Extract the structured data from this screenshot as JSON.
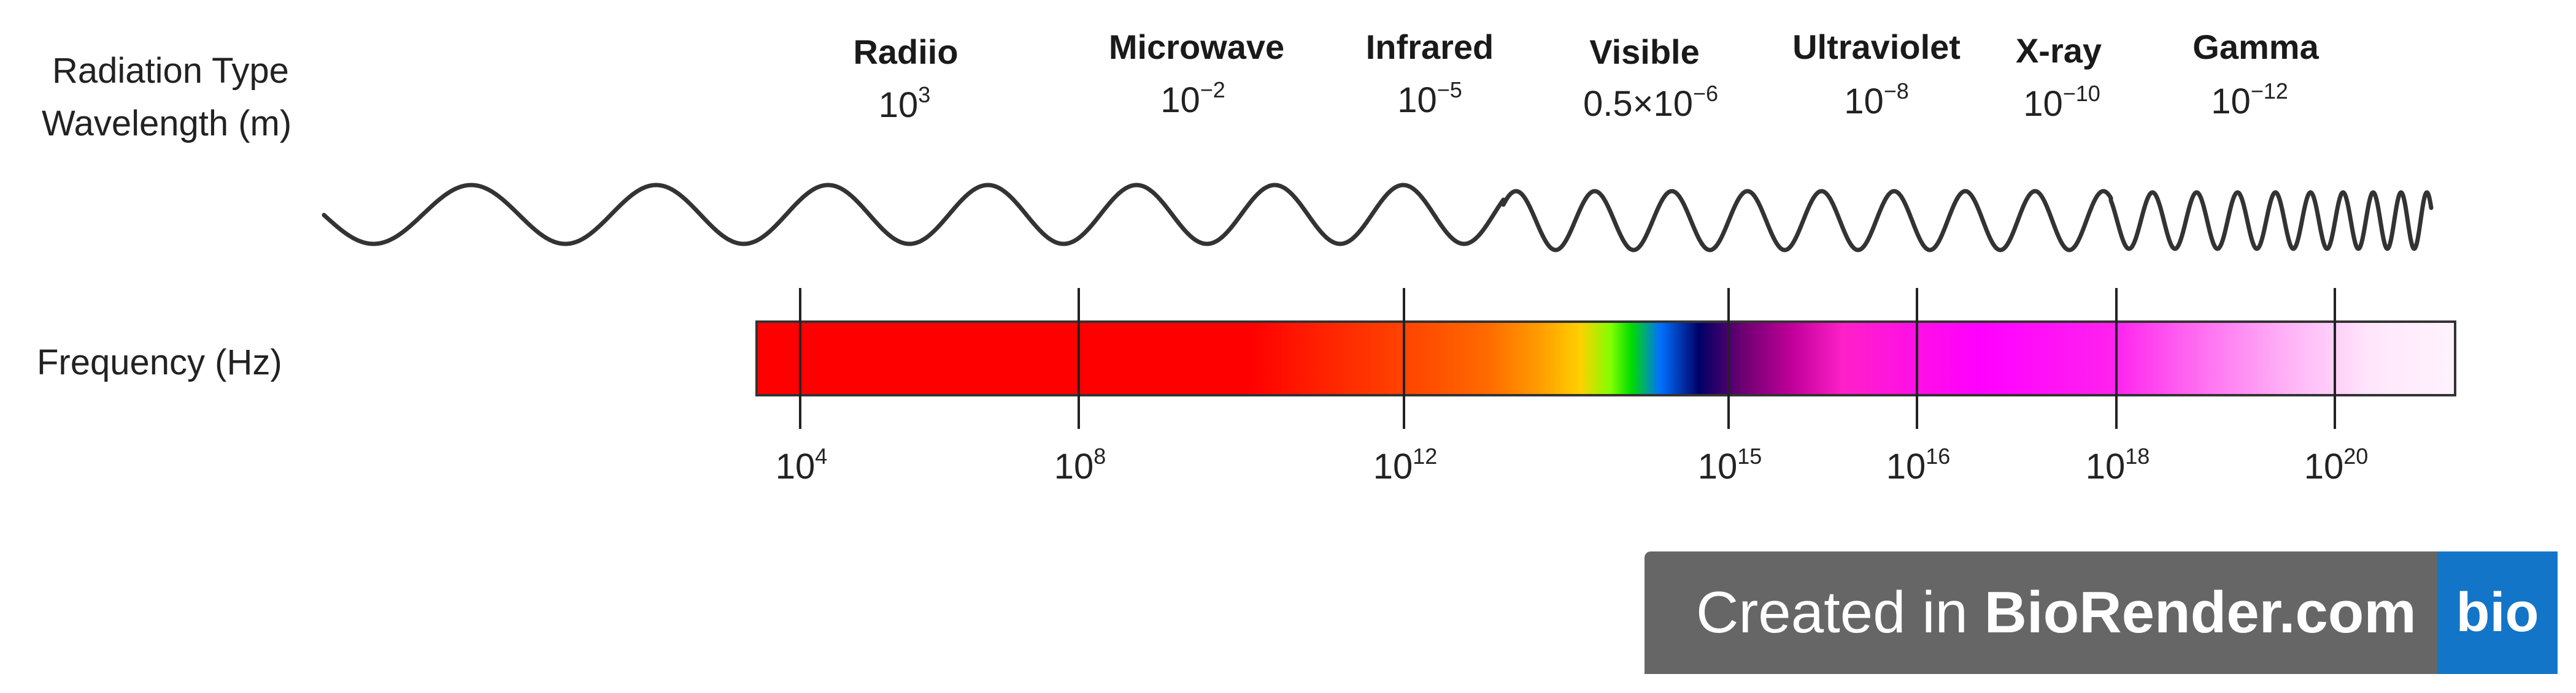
{
  "row_labels": {
    "radiation_type": "Radiation Type",
    "wavelength": "Wavelength (m)",
    "frequency": "Frequency (Hz)"
  },
  "radiation": [
    {
      "name": "Radiio",
      "wl_base": "10",
      "wl_exp": "3"
    },
    {
      "name": "Microwave",
      "wl_base": "10",
      "wl_exp": "−2"
    },
    {
      "name": "Infrared",
      "wl_base": "10",
      "wl_exp": "−5"
    },
    {
      "name": "Visible",
      "wl_base": "0.5×10",
      "wl_exp": "−6"
    },
    {
      "name": "Ultraviolet",
      "wl_base": "10",
      "wl_exp": "−8"
    },
    {
      "name": "X-ray",
      "wl_base": "10",
      "wl_exp": "−10"
    },
    {
      "name": "Gamma",
      "wl_base": "10",
      "wl_exp": "−12"
    }
  ],
  "frequency_ticks": [
    {
      "base": "10",
      "exp": "4"
    },
    {
      "base": "10",
      "exp": "8"
    },
    {
      "base": "10",
      "exp": "12"
    },
    {
      "base": "10",
      "exp": "15"
    },
    {
      "base": "10",
      "exp": "16"
    },
    {
      "base": "10",
      "exp": "18"
    },
    {
      "base": "10",
      "exp": "20"
    }
  ],
  "colors": {
    "wave": "#333333",
    "badge_bg": "#666666",
    "badge_logo_bg": "#1275c8"
  },
  "badge": {
    "prefix": "Created in ",
    "brand": "BioRender.com",
    "logo": "bio"
  }
}
